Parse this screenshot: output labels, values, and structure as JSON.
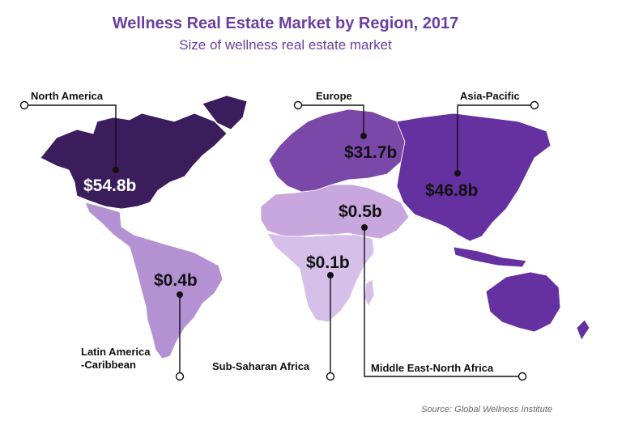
{
  "title": "Wellness Real Estate Market by Region, 2017",
  "subtitle": "Size of wellness real estate market",
  "regions": [
    {
      "id": "north-america",
      "name": "North America",
      "value": "$54.8b",
      "color": "#3b1d5e"
    },
    {
      "id": "europe",
      "name": "Europe",
      "value": "$31.7b",
      "color": "#7a48a8"
    },
    {
      "id": "asia-pacific",
      "name": "Asia-Pacific",
      "value": "$46.8b",
      "color": "#6530a0"
    },
    {
      "id": "middle-east-north-africa",
      "name": "Middle East-North Africa",
      "value": "$0.5b",
      "color": "#c7a7de"
    },
    {
      "id": "sub-saharan-africa",
      "name": "Sub-Saharan Africa",
      "value": "$0.1b",
      "color": "#c7a7de"
    },
    {
      "id": "latin-america-caribbean",
      "name_line1": "Latin America",
      "name_line2": "-Caribbean",
      "value": "$0.4b",
      "color": "#b491d2"
    }
  ],
  "source": "Source: Global Wellness Institute"
}
